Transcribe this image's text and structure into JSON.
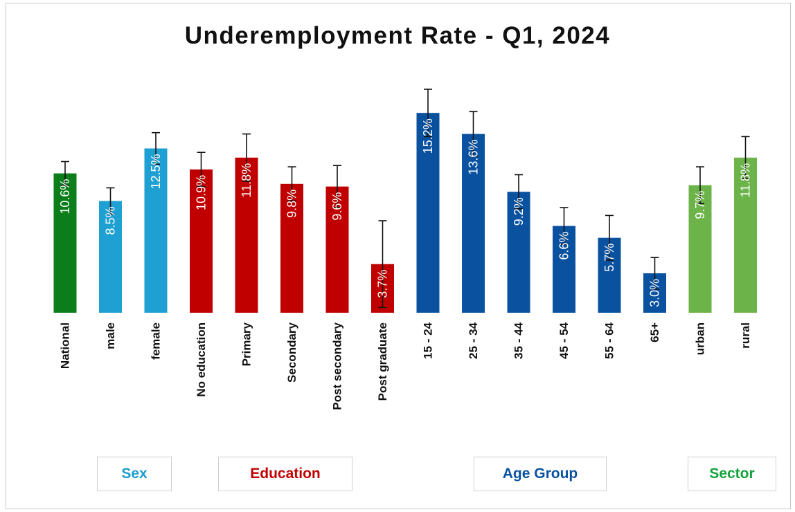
{
  "chart_data": {
    "type": "bar",
    "title": "Underemployment Rate - Q1, 2024",
    "categories": [
      "National",
      "male",
      "female",
      "No education",
      "Primary",
      "Secondary",
      "Post secondary",
      "Post graduate",
      "15 - 24",
      "25 - 34",
      "35 - 44",
      "45 - 54",
      "55 - 64",
      "65+",
      "urban",
      "rural"
    ],
    "values": [
      10.6,
      8.5,
      12.5,
      10.9,
      11.8,
      9.8,
      9.6,
      3.7,
      15.2,
      13.6,
      9.2,
      6.6,
      5.7,
      3.0,
      9.7,
      11.8
    ],
    "value_labels": [
      "10.6%",
      "8.5%",
      "12.5%",
      "10.9%",
      "11.8%",
      "9.8%",
      "9.6%",
      "3.7%",
      "15.2%",
      "13.6%",
      "9.2%",
      "6.6%",
      "5.7%",
      "3.0%",
      "9.7%",
      "11.8%"
    ],
    "error_upper": [
      11.5,
      9.5,
      13.7,
      12.2,
      13.6,
      11.1,
      11.2,
      7.0,
      17.0,
      15.3,
      10.5,
      8.0,
      7.4,
      4.2,
      11.1,
      13.4
    ],
    "error_lower": [
      9.7,
      7.5,
      11.3,
      9.6,
      10.0,
      8.5,
      8.0,
      0.4,
      13.4,
      11.9,
      7.9,
      5.2,
      4.0,
      1.8,
      8.3,
      10.2
    ],
    "bar_colors": [
      "#0b7d1a",
      "#1fa0d2",
      "#1fa0d2",
      "#c00000",
      "#c00000",
      "#c00000",
      "#c00000",
      "#c00000",
      "#0a52a0",
      "#0a52a0",
      "#0a52a0",
      "#0a52a0",
      "#0a52a0",
      "#0a52a0",
      "#6cb349",
      "#6cb349"
    ],
    "ylim": [
      0,
      20
    ],
    "xlabel": "",
    "ylabel": "",
    "grid": false
  },
  "groups": [
    {
      "label": "Sex",
      "color": "#1f9ccf"
    },
    {
      "label": "Education",
      "color": "#c00000"
    },
    {
      "label": "Age Group",
      "color": "#0a52a0"
    },
    {
      "label": "Sector",
      "color": "#14a23c"
    }
  ]
}
